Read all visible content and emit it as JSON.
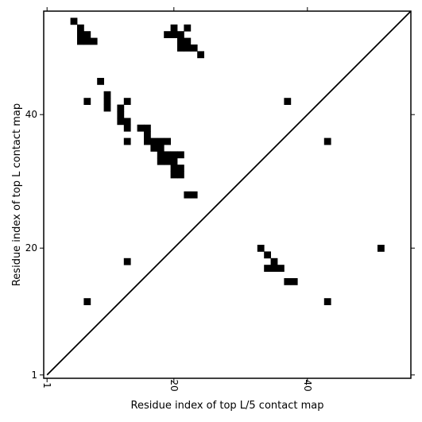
{
  "chart_data": {
    "type": "heatmap",
    "xlabel": "Residue index of top L/5 contact map",
    "ylabel": "Residue index of top L contact map",
    "xlim": [
      0.5,
      55.5
    ],
    "ylim": [
      0.5,
      55.5
    ],
    "xticks": [
      1,
      20,
      40
    ],
    "yticks": [
      1,
      20,
      40
    ],
    "xtick_labels": [
      "1",
      "20",
      "40"
    ],
    "ytick_labels": [
      "1",
      "20",
      "40"
    ],
    "diagonal": true,
    "contact_color": "#000000",
    "upper_contacts": [
      [
        5,
        54
      ],
      [
        6,
        53
      ],
      [
        6,
        52
      ],
      [
        6,
        51
      ],
      [
        7,
        52
      ],
      [
        7,
        51
      ],
      [
        8,
        51
      ],
      [
        20,
        53
      ],
      [
        22,
        53
      ],
      [
        19,
        52
      ],
      [
        20,
        52
      ],
      [
        21,
        52
      ],
      [
        21,
        51
      ],
      [
        22,
        51
      ],
      [
        21,
        50
      ],
      [
        22,
        50
      ],
      [
        23,
        50
      ],
      [
        24,
        49
      ],
      [
        9,
        45
      ],
      [
        7,
        42
      ],
      [
        10,
        43
      ],
      [
        10,
        42
      ],
      [
        10,
        41
      ],
      [
        13,
        42
      ],
      [
        12,
        41
      ],
      [
        12,
        40
      ],
      [
        12,
        39
      ],
      [
        13,
        39
      ],
      [
        13,
        38
      ],
      [
        13,
        36
      ],
      [
        15,
        38
      ],
      [
        16,
        38
      ],
      [
        16,
        37
      ],
      [
        16,
        36
      ],
      [
        17,
        36
      ],
      [
        18,
        36
      ],
      [
        19,
        36
      ],
      [
        17,
        35
      ],
      [
        18,
        35
      ],
      [
        18,
        34
      ],
      [
        19,
        34
      ],
      [
        20,
        34
      ],
      [
        21,
        34
      ],
      [
        18,
        33
      ],
      [
        19,
        33
      ],
      [
        20,
        33
      ],
      [
        20,
        32
      ],
      [
        21,
        32
      ],
      [
        20,
        31
      ],
      [
        21,
        31
      ],
      [
        22,
        28
      ],
      [
        23,
        28
      ],
      [
        37,
        42
      ],
      [
        43,
        36
      ]
    ],
    "lower_contacts": [
      [
        33,
        20
      ],
      [
        34,
        19
      ],
      [
        35,
        18
      ],
      [
        34,
        17
      ],
      [
        35,
        17
      ],
      [
        36,
        17
      ],
      [
        37,
        15
      ],
      [
        38,
        15
      ],
      [
        13,
        18
      ],
      [
        7,
        12
      ],
      [
        43,
        12
      ],
      [
        51,
        20
      ]
    ]
  }
}
